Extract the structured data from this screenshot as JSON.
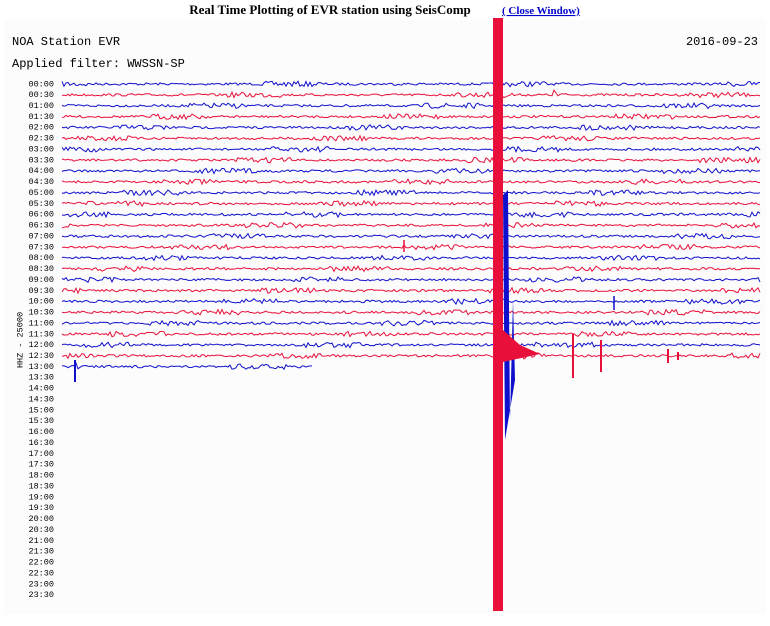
{
  "header": {
    "title": "Real Time Plotting of EVR station using SeisComp",
    "link": "( Close Window)"
  },
  "station": "NOA Station EVR",
  "date": "2016-09-23",
  "filter": "Applied filter: WWSSN-SP",
  "channel": "HHZ - 25000",
  "times": [
    "00:00",
    "00:30",
    "01:00",
    "01:30",
    "02:00",
    "02:30",
    "03:00",
    "03:30",
    "04:00",
    "04:30",
    "05:00",
    "05:30",
    "06:00",
    "06:30",
    "07:00",
    "07:30",
    "08:00",
    "08:30",
    "09:00",
    "09:30",
    "10:00",
    "10:30",
    "11:00",
    "11:30",
    "12:00",
    "12:30",
    "13:00",
    "13:30",
    "14:00",
    "14:30",
    "15:00",
    "15:30",
    "16:00",
    "16:30",
    "17:00",
    "17:30",
    "18:00",
    "18:30",
    "19:00",
    "19:30",
    "20:00",
    "20:30",
    "21:00",
    "21:30",
    "22:00",
    "22:30",
    "23:00",
    "23:30"
  ]
}
